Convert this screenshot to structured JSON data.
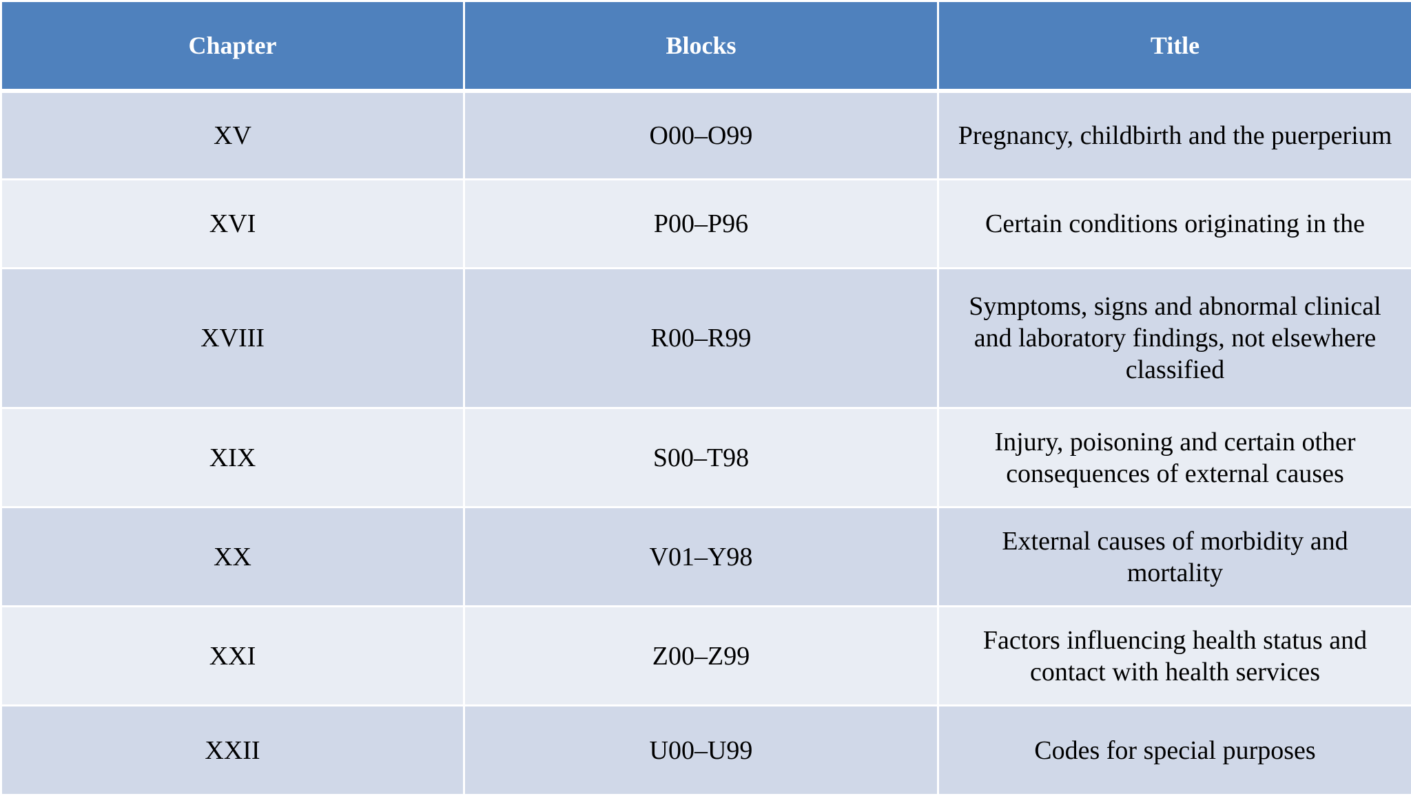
{
  "table": {
    "headers": {
      "chapter": "Chapter",
      "blocks": "Blocks",
      "title": "Title"
    },
    "rows": [
      {
        "chapter": "XV",
        "blocks": "O00–O99",
        "title": "Pregnancy, childbirth and the puerperium"
      },
      {
        "chapter": "XVI",
        "blocks": "P00–P96",
        "title": "Certain conditions originating in the"
      },
      {
        "chapter": "XVIII",
        "blocks": "R00–R99",
        "title": "Symptoms, signs and abnormal clinical and laboratory findings, not elsewhere classified"
      },
      {
        "chapter": "XIX",
        "blocks": "S00–T98",
        "title": "Injury, poisoning and certain other consequences of external causes"
      },
      {
        "chapter": "XX",
        "blocks": "V01–Y98",
        "title": "External causes of morbidity and mortality"
      },
      {
        "chapter": "XXI",
        "blocks": "Z00–Z99",
        "title": "Factors influencing health status and contact with health services"
      },
      {
        "chapter": "XXII",
        "blocks": "U00–U99",
        "title": "Codes for special purposes"
      }
    ]
  },
  "colors": {
    "header_bg": "#4f81bd",
    "row_odd_bg": "#d0d8e8",
    "row_even_bg": "#e9edf4"
  }
}
